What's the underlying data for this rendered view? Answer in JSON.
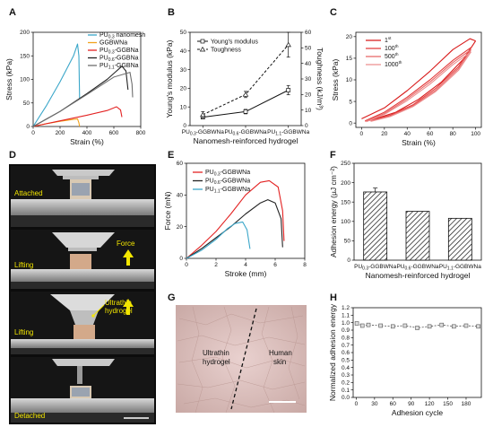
{
  "colors": {
    "red": "#e32222",
    "black": "#222222",
    "gray": "#6e6e6e",
    "cyan": "#3aa6c9",
    "orange": "#f2a21b",
    "photoText": "#f3e600",
    "arrow": "#f3e600"
  },
  "panels": {
    "A": "A",
    "B": "B",
    "C": "C",
    "D": "D",
    "E": "E",
    "F": "F",
    "G": "G",
    "H": "H"
  },
  "chart_data": [
    {
      "id": "A",
      "type": "line",
      "xlabel": "Strain (%)",
      "ylabel": "Stress (kPa)",
      "xlim": [
        0,
        800
      ],
      "ylim": [
        0,
        200
      ],
      "xticks": [
        "0",
        "200",
        "400",
        "600",
        "800"
      ],
      "yticks": [
        "0",
        "50",
        "100",
        "150",
        "200"
      ],
      "legend": [
        {
          "label_pre": "PU",
          "sub": "0.3",
          "label_post": " nanomesh",
          "color": "cyan"
        },
        {
          "label_pre": "GGBWNa",
          "sub": "",
          "label_post": "",
          "color": "orange"
        },
        {
          "label_pre": "PU",
          "sub": "0.3",
          "label_post": "-GGBNa",
          "color": "red"
        },
        {
          "label_pre": "PU",
          "sub": "0.6",
          "label_post": "-GGBNa",
          "color": "black"
        },
        {
          "label_pre": "PU",
          "sub": "1.1",
          "label_post": "-GGBNa",
          "color": "gray"
        }
      ],
      "series": [
        {
          "color": "cyan",
          "points": [
            [
              0,
              0
            ],
            [
              100,
              45
            ],
            [
              200,
              95
            ],
            [
              300,
              150
            ],
            [
              330,
              175
            ],
            [
              340,
              150
            ],
            [
              345,
              60
            ]
          ]
        },
        {
          "color": "orange",
          "points": [
            [
              0,
              0
            ],
            [
              100,
              6
            ],
            [
              200,
              11
            ],
            [
              300,
              15
            ],
            [
              330,
              16
            ],
            [
              340,
              8
            ],
            [
              345,
              0
            ]
          ]
        },
        {
          "color": "red",
          "points": [
            [
              0,
              0
            ],
            [
              200,
              12
            ],
            [
              400,
              24
            ],
            [
              550,
              34
            ],
            [
              620,
              42
            ],
            [
              650,
              35
            ],
            [
              660,
              20
            ]
          ]
        },
        {
          "color": "black",
          "points": [
            [
              0,
              0
            ],
            [
              200,
              32
            ],
            [
              400,
              70
            ],
            [
              550,
              100
            ],
            [
              660,
              128
            ],
            [
              690,
              118
            ],
            [
              705,
              78
            ]
          ]
        },
        {
          "color": "gray",
          "points": [
            [
              0,
              0
            ],
            [
              200,
              32
            ],
            [
              400,
              68
            ],
            [
              600,
              105
            ],
            [
              720,
              115
            ],
            [
              735,
              90
            ],
            [
              740,
              62
            ]
          ]
        }
      ]
    },
    {
      "id": "B",
      "type": "line",
      "xlabel": "Nanomesh-reinforced hydrogel",
      "ylabel": "Young's modulus (kPa)",
      "ylabel2": "Toughness (kJ/m³)",
      "categories": [
        {
          "pre": "PU",
          "sub": "0.3",
          "post": "-GGBWNa"
        },
        {
          "pre": "PU",
          "sub": "0.6",
          "post": "-GGBWNa"
        },
        {
          "pre": "PU",
          "sub": "1.1",
          "post": "-GGBWNa"
        }
      ],
      "ylim": [
        0,
        50
      ],
      "ylim2": [
        0,
        60
      ],
      "yticks": [
        "0",
        "10",
        "20",
        "30",
        "40",
        "50"
      ],
      "yticks2": [
        "0",
        "10",
        "20",
        "30",
        "40",
        "50",
        "60"
      ],
      "legend": [
        "Young's modulus",
        "Toughness"
      ],
      "series": [
        {
          "name": "Young's modulus",
          "values": [
            4.5,
            7.5,
            19
          ],
          "err": [
            1,
            1.2,
            2.5
          ],
          "dash": false
        },
        {
          "name": "Toughness",
          "axis": 2,
          "values": [
            7,
            20,
            52
          ],
          "err": [
            2,
            2,
            8
          ],
          "dash": true
        }
      ]
    },
    {
      "id": "C",
      "type": "line",
      "xlabel": "Strain (%)",
      "ylabel": "Stress (kPa)",
      "xlim": [
        0,
        100
      ],
      "ylim": [
        0,
        20
      ],
      "xticks": [
        "0",
        "20",
        "40",
        "60",
        "80",
        "100"
      ],
      "yticks": [
        "0",
        "5",
        "10",
        "15",
        "20"
      ],
      "legend": [
        {
          "n": "1",
          "sup": "st"
        },
        {
          "n": "100",
          "sup": "th"
        },
        {
          "n": "500",
          "sup": "th"
        },
        {
          "n": "1000",
          "sup": "th"
        }
      ],
      "series": [
        {
          "name": "1st",
          "load": [
            [
              0,
              1
            ],
            [
              20,
              3.5
            ],
            [
              40,
              7.5
            ],
            [
              60,
              12
            ],
            [
              80,
              17
            ],
            [
              95,
              19.5
            ],
            [
              100,
              19
            ]
          ],
          "unload": [
            [
              100,
              19
            ],
            [
              90,
              15
            ],
            [
              70,
              9.5
            ],
            [
              50,
              5.5
            ],
            [
              30,
              2.5
            ],
            [
              10,
              0.8
            ],
            [
              5,
              0.5
            ]
          ]
        },
        {
          "name": "100th",
          "load": [
            [
              3,
              0.5
            ],
            [
              20,
              2.5
            ],
            [
              40,
              6
            ],
            [
              60,
              10
            ],
            [
              80,
              14.5
            ],
            [
              96,
              17.5
            ]
          ],
          "unload": [
            [
              96,
              17.5
            ],
            [
              85,
              13
            ],
            [
              65,
              8
            ],
            [
              45,
              4.2
            ],
            [
              25,
              1.8
            ],
            [
              8,
              0.6
            ]
          ]
        },
        {
          "name": "500th",
          "load": [
            [
              3,
              0.4
            ],
            [
              20,
              2.2
            ],
            [
              40,
              5.6
            ],
            [
              60,
              9.5
            ],
            [
              80,
              14
            ],
            [
              96,
              17
            ]
          ],
          "unload": [
            [
              96,
              17
            ],
            [
              85,
              12.6
            ],
            [
              65,
              7.6
            ],
            [
              45,
              4
            ],
            [
              25,
              1.6
            ],
            [
              8,
              0.5
            ]
          ]
        },
        {
          "name": "1000th",
          "load": [
            [
              4,
              0.3
            ],
            [
              20,
              2
            ],
            [
              40,
              5.2
            ],
            [
              60,
              9
            ],
            [
              80,
              13.5
            ],
            [
              96,
              16.5
            ]
          ],
          "unload": [
            [
              96,
              16.5
            ],
            [
              85,
              12.2
            ],
            [
              65,
              7.3
            ],
            [
              45,
              3.8
            ],
            [
              25,
              1.5
            ],
            [
              8,
              0.4
            ]
          ]
        }
      ]
    },
    {
      "id": "E",
      "type": "line",
      "xlabel": "Stroke (mm)",
      "ylabel": "Force (mN)",
      "xlim": [
        0,
        8
      ],
      "ylim": [
        0,
        60
      ],
      "xticks": [
        "0",
        "2",
        "4",
        "6",
        "8"
      ],
      "yticks": [
        "0",
        "20",
        "40",
        "60"
      ],
      "legend": [
        {
          "pre": "PU",
          "sub": "0.3",
          "post": "-GGBWNa",
          "color": "red"
        },
        {
          "pre": "PU",
          "sub": "0.6",
          "post": "-GGBWNa",
          "color": "black"
        },
        {
          "pre": "PU",
          "sub": "1.1",
          "post": "-GGBWNa",
          "color": "cyan"
        }
      ],
      "series": [
        {
          "color": "red",
          "points": [
            [
              0,
              0
            ],
            [
              1,
              8
            ],
            [
              2,
              17
            ],
            [
              3,
              28
            ],
            [
              4,
              40
            ],
            [
              5,
              48
            ],
            [
              5.6,
              49
            ],
            [
              6.2,
              45
            ],
            [
              6.5,
              30
            ],
            [
              6.6,
              11
            ]
          ]
        },
        {
          "color": "black",
          "points": [
            [
              0,
              0
            ],
            [
              1,
              6
            ],
            [
              2,
              13
            ],
            [
              3,
              20
            ],
            [
              4,
              28
            ],
            [
              5,
              35
            ],
            [
              5.5,
              37
            ],
            [
              6,
              35
            ],
            [
              6.4,
              25
            ],
            [
              6.5,
              7
            ]
          ]
        },
        {
          "color": "cyan",
          "points": [
            [
              0,
              0
            ],
            [
              1,
              5
            ],
            [
              2,
              12
            ],
            [
              2.8,
              19
            ],
            [
              3.3,
              22
            ],
            [
              3.8,
              23
            ],
            [
              4.1,
              18
            ],
            [
              4.3,
              6
            ]
          ]
        }
      ]
    },
    {
      "id": "F",
      "type": "bar",
      "xlabel": "Nanomesh-reinforced hydrogel",
      "ylabel": "Adhesion energy (µJ cm⁻²)",
      "ylim": [
        0,
        250
      ],
      "yticks": [
        "0",
        "50",
        "100",
        "150",
        "200",
        "250"
      ],
      "categories": [
        {
          "pre": "PU",
          "sub": "0.3",
          "post": "-GGBWNa"
        },
        {
          "pre": "PU",
          "sub": "0.6",
          "post": "-GGBWNa"
        },
        {
          "pre": "PU",
          "sub": "1.1",
          "post": "-GGBWNa"
        }
      ],
      "values": [
        176,
        126,
        108
      ],
      "err": [
        10,
        0,
        0
      ]
    },
    {
      "id": "H",
      "type": "line",
      "xlabel": "Adhesion cycle",
      "ylabel": "Normalized adhesion energy",
      "xlim": [
        0,
        200
      ],
      "ylim": [
        0,
        1.2
      ],
      "xticks": [
        "0",
        "30",
        "60",
        "90",
        "120",
        "150",
        "180"
      ],
      "yticks": [
        "0.0",
        "0.1",
        "0.2",
        "0.3",
        "0.4",
        "0.5",
        "0.6",
        "0.7",
        "0.8",
        "0.9",
        "1.0",
        "1.1",
        "1.2"
      ],
      "series": [
        {
          "x": [
            1,
            10,
            20,
            40,
            60,
            80,
            100,
            120,
            140,
            160,
            180,
            200
          ],
          "y": [
            0.99,
            0.96,
            0.97,
            0.96,
            0.95,
            0.96,
            0.93,
            0.95,
            0.97,
            0.95,
            0.96,
            0.95
          ]
        }
      ]
    }
  ],
  "photos": {
    "D": {
      "labels": [
        "Attached",
        "Lifting",
        "Lifting",
        "Detached"
      ],
      "force": "Force",
      "ultrathin": "Ultrathin\nhydrogel"
    },
    "G": {
      "left": "Ultrathin\nhydrogel",
      "right": "Human\nskin"
    }
  }
}
